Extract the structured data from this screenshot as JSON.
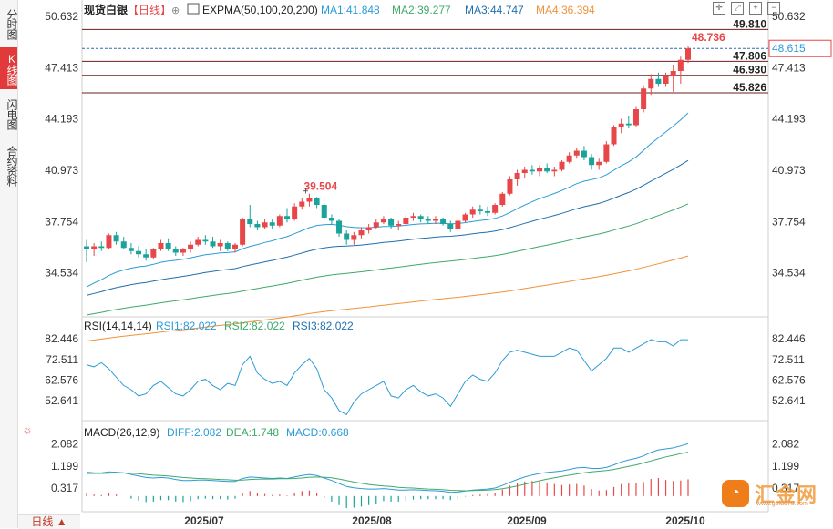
{
  "sidebar": {
    "tabs": [
      {
        "label": "分时图",
        "active": false
      },
      {
        "label": "K线图",
        "active": true
      },
      {
        "label": "闪电图",
        "active": false
      },
      {
        "label": "合约资料",
        "active": false
      }
    ]
  },
  "header": {
    "symbol": "现货白银",
    "period": "【日线】",
    "indicator": "EXPMA(50,100,20,200)",
    "ma1": "MA1:41.848",
    "ma2": "MA2:39.277",
    "ma3": "MA3:44.747",
    "ma4": "MA4:36.394"
  },
  "rsi_header": {
    "name": "RSI(14,14,14)",
    "rsi1": "RSI1:82.022",
    "rsi2": "RSI2:82.022",
    "rsi3": "RSI3:82.022"
  },
  "macd_header": {
    "name": "MACD(26,12,9)",
    "diff": "DIFF:2.082",
    "dea": "DEA:1.748",
    "macd": "MACD:0.668"
  },
  "period_selector": "日线",
  "current_price_tag": "48.615",
  "logo": {
    "text": "汇金网",
    "url": "www.gold678.com"
  },
  "colors": {
    "up": "#e8474a",
    "down": "#1aa39a",
    "ma1": "#2c9bd6",
    "ma2": "#3fa96b",
    "ma3": "#1f6fae",
    "ma4": "#f0923a",
    "rsi": "#2c9bd6",
    "diff": "#2c9bd6",
    "dea": "#3fa96b"
  },
  "chart_data": {
    "type": "candlestick",
    "x_ticks": [
      "2025/07",
      "2025/08",
      "2025/09",
      "2025/10"
    ],
    "price_axis": {
      "ticks": [
        50.632,
        47.413,
        44.193,
        40.973,
        37.754,
        34.534
      ],
      "range": [
        32.0,
        51.2
      ]
    },
    "horizontal_levels": [
      49.81,
      47.806,
      46.93,
      45.826
    ],
    "annotations": [
      {
        "label": "39.504",
        "type": "high"
      },
      {
        "label": "48.736",
        "type": "high"
      }
    ],
    "candles": [
      {
        "o": 36.2,
        "h": 36.6,
        "l": 35.2,
        "c": 36.0
      },
      {
        "o": 36.0,
        "h": 36.4,
        "l": 35.6,
        "c": 36.2
      },
      {
        "o": 36.2,
        "h": 36.5,
        "l": 35.9,
        "c": 36.1
      },
      {
        "o": 36.1,
        "h": 37.0,
        "l": 36.0,
        "c": 36.9
      },
      {
        "o": 36.9,
        "h": 37.1,
        "l": 36.3,
        "c": 36.5
      },
      {
        "o": 36.5,
        "h": 36.8,
        "l": 36.0,
        "c": 36.1
      },
      {
        "o": 36.1,
        "h": 36.4,
        "l": 35.7,
        "c": 35.9
      },
      {
        "o": 35.9,
        "h": 36.2,
        "l": 35.5,
        "c": 35.7
      },
      {
        "o": 35.7,
        "h": 36.0,
        "l": 35.3,
        "c": 35.5
      },
      {
        "o": 35.5,
        "h": 36.1,
        "l": 35.4,
        "c": 36.0
      },
      {
        "o": 36.0,
        "h": 36.6,
        "l": 35.9,
        "c": 36.4
      },
      {
        "o": 36.4,
        "h": 36.7,
        "l": 35.9,
        "c": 36.0
      },
      {
        "o": 36.0,
        "h": 36.2,
        "l": 35.6,
        "c": 35.8
      },
      {
        "o": 35.8,
        "h": 36.1,
        "l": 35.6,
        "c": 36.0
      },
      {
        "o": 36.0,
        "h": 36.5,
        "l": 35.8,
        "c": 36.3
      },
      {
        "o": 36.3,
        "h": 36.8,
        "l": 36.2,
        "c": 36.6
      },
      {
        "o": 36.6,
        "h": 36.9,
        "l": 36.3,
        "c": 36.5
      },
      {
        "o": 36.5,
        "h": 36.8,
        "l": 36.1,
        "c": 36.2
      },
      {
        "o": 36.2,
        "h": 36.6,
        "l": 35.9,
        "c": 36.4
      },
      {
        "o": 36.4,
        "h": 36.5,
        "l": 35.9,
        "c": 36.0
      },
      {
        "o": 36.0,
        "h": 36.4,
        "l": 35.8,
        "c": 36.3
      },
      {
        "o": 36.3,
        "h": 38.0,
        "l": 36.2,
        "c": 37.9
      },
      {
        "o": 37.9,
        "h": 38.8,
        "l": 37.4,
        "c": 37.6
      },
      {
        "o": 37.6,
        "h": 37.8,
        "l": 37.2,
        "c": 37.4
      },
      {
        "o": 37.4,
        "h": 37.9,
        "l": 37.3,
        "c": 37.7
      },
      {
        "o": 37.7,
        "h": 37.9,
        "l": 37.3,
        "c": 37.5
      },
      {
        "o": 37.5,
        "h": 38.2,
        "l": 37.4,
        "c": 38.1
      },
      {
        "o": 38.1,
        "h": 38.6,
        "l": 37.7,
        "c": 37.9
      },
      {
        "o": 37.9,
        "h": 38.9,
        "l": 37.8,
        "c": 38.7
      },
      {
        "o": 38.7,
        "h": 39.2,
        "l": 38.5,
        "c": 39.0
      },
      {
        "o": 39.0,
        "h": 39.504,
        "l": 38.7,
        "c": 39.2
      },
      {
        "o": 39.2,
        "h": 39.3,
        "l": 38.6,
        "c": 38.8
      },
      {
        "o": 38.8,
        "h": 38.9,
        "l": 37.9,
        "c": 38.0
      },
      {
        "o": 38.0,
        "h": 38.2,
        "l": 37.6,
        "c": 37.8
      },
      {
        "o": 37.8,
        "h": 37.9,
        "l": 36.8,
        "c": 37.0
      },
      {
        "o": 37.0,
        "h": 37.2,
        "l": 36.3,
        "c": 36.6
      },
      {
        "o": 36.6,
        "h": 37.1,
        "l": 36.3,
        "c": 36.9
      },
      {
        "o": 36.9,
        "h": 37.4,
        "l": 36.7,
        "c": 37.2
      },
      {
        "o": 37.2,
        "h": 37.6,
        "l": 37.0,
        "c": 37.4
      },
      {
        "o": 37.4,
        "h": 37.9,
        "l": 37.3,
        "c": 37.7
      },
      {
        "o": 37.7,
        "h": 38.1,
        "l": 37.6,
        "c": 37.9
      },
      {
        "o": 37.9,
        "h": 38.0,
        "l": 37.3,
        "c": 37.5
      },
      {
        "o": 37.5,
        "h": 37.8,
        "l": 37.2,
        "c": 37.6
      },
      {
        "o": 37.6,
        "h": 38.2,
        "l": 37.5,
        "c": 38.0
      },
      {
        "o": 38.0,
        "h": 38.3,
        "l": 37.8,
        "c": 38.1
      },
      {
        "o": 38.1,
        "h": 38.2,
        "l": 37.7,
        "c": 37.9
      },
      {
        "o": 37.9,
        "h": 38.1,
        "l": 37.6,
        "c": 37.8
      },
      {
        "o": 37.8,
        "h": 38.1,
        "l": 37.6,
        "c": 37.9
      },
      {
        "o": 37.9,
        "h": 38.0,
        "l": 37.5,
        "c": 37.6
      },
      {
        "o": 37.6,
        "h": 37.8,
        "l": 37.1,
        "c": 37.3
      },
      {
        "o": 37.3,
        "h": 37.9,
        "l": 37.2,
        "c": 37.8
      },
      {
        "o": 37.8,
        "h": 38.3,
        "l": 37.7,
        "c": 38.2
      },
      {
        "o": 38.2,
        "h": 38.7,
        "l": 38.0,
        "c": 38.5
      },
      {
        "o": 38.5,
        "h": 38.8,
        "l": 38.2,
        "c": 38.4
      },
      {
        "o": 38.4,
        "h": 38.7,
        "l": 38.1,
        "c": 38.3
      },
      {
        "o": 38.3,
        "h": 38.9,
        "l": 38.2,
        "c": 38.8
      },
      {
        "o": 38.8,
        "h": 39.6,
        "l": 38.7,
        "c": 39.5
      },
      {
        "o": 39.5,
        "h": 40.6,
        "l": 39.4,
        "c": 40.4
      },
      {
        "o": 40.4,
        "h": 41.0,
        "l": 40.0,
        "c": 40.8
      },
      {
        "o": 40.8,
        "h": 41.2,
        "l": 40.5,
        "c": 41.0
      },
      {
        "o": 41.0,
        "h": 41.3,
        "l": 40.7,
        "c": 40.9
      },
      {
        "o": 40.9,
        "h": 41.3,
        "l": 40.6,
        "c": 41.1
      },
      {
        "o": 41.1,
        "h": 41.4,
        "l": 40.8,
        "c": 40.9
      },
      {
        "o": 40.9,
        "h": 41.2,
        "l": 40.6,
        "c": 41.0
      },
      {
        "o": 41.0,
        "h": 41.6,
        "l": 40.9,
        "c": 41.5
      },
      {
        "o": 41.5,
        "h": 42.1,
        "l": 41.4,
        "c": 41.9
      },
      {
        "o": 41.9,
        "h": 42.4,
        "l": 41.7,
        "c": 42.2
      },
      {
        "o": 42.2,
        "h": 42.5,
        "l": 41.6,
        "c": 41.8
      },
      {
        "o": 41.8,
        "h": 42.0,
        "l": 41.0,
        "c": 41.3
      },
      {
        "o": 41.3,
        "h": 41.7,
        "l": 41.0,
        "c": 41.5
      },
      {
        "o": 41.5,
        "h": 42.8,
        "l": 41.4,
        "c": 42.6
      },
      {
        "o": 42.6,
        "h": 43.8,
        "l": 42.5,
        "c": 43.7
      },
      {
        "o": 43.7,
        "h": 44.2,
        "l": 43.3,
        "c": 43.9
      },
      {
        "o": 43.9,
        "h": 44.4,
        "l": 43.6,
        "c": 43.8
      },
      {
        "o": 43.8,
        "h": 45.0,
        "l": 43.7,
        "c": 44.8
      },
      {
        "o": 44.8,
        "h": 46.3,
        "l": 44.6,
        "c": 46.1
      },
      {
        "o": 46.1,
        "h": 47.0,
        "l": 45.7,
        "c": 46.7
      },
      {
        "o": 46.7,
        "h": 47.1,
        "l": 46.2,
        "c": 46.4
      },
      {
        "o": 46.4,
        "h": 47.1,
        "l": 46.2,
        "c": 46.9
      },
      {
        "o": 46.9,
        "h": 47.6,
        "l": 45.9,
        "c": 47.2
      },
      {
        "o": 47.2,
        "h": 48.1,
        "l": 46.4,
        "c": 47.9
      },
      {
        "o": 47.9,
        "h": 48.736,
        "l": 47.7,
        "c": 48.615
      }
    ],
    "rsi_axis": {
      "ticks": [
        82.446,
        72.511,
        62.576,
        52.641
      ],
      "range": [
        44,
        86
      ]
    },
    "rsi": [
      70,
      69,
      71,
      68,
      64,
      60,
      58,
      55,
      56,
      60,
      62,
      59,
      56,
      55,
      58,
      62,
      63,
      60,
      58,
      61,
      60,
      70,
      74,
      66,
      63,
      61,
      62,
      60,
      66,
      70,
      73,
      68,
      58,
      54,
      48,
      46,
      52,
      56,
      58,
      60,
      62,
      55,
      54,
      58,
      60,
      57,
      55,
      56,
      54,
      50,
      56,
      62,
      65,
      63,
      62,
      66,
      72,
      76,
      77,
      76,
      75,
      74,
      74,
      74,
      76,
      78,
      77,
      72,
      67,
      70,
      73,
      78,
      78,
      76,
      78,
      80,
      82,
      81,
      81,
      79,
      82,
      82
    ],
    "macd_axis": {
      "ticks": [
        2.082,
        1.199,
        0.317
      ],
      "range": [
        -0.55,
        2.35
      ]
    },
    "diff": [
      0.95,
      0.93,
      0.92,
      0.96,
      0.95,
      0.92,
      0.86,
      0.8,
      0.74,
      0.72,
      0.74,
      0.72,
      0.66,
      0.62,
      0.62,
      0.64,
      0.64,
      0.62,
      0.6,
      0.58,
      0.58,
      0.7,
      0.76,
      0.74,
      0.72,
      0.7,
      0.72,
      0.7,
      0.76,
      0.82,
      0.86,
      0.82,
      0.72,
      0.62,
      0.5,
      0.38,
      0.33,
      0.3,
      0.28,
      0.28,
      0.3,
      0.27,
      0.24,
      0.24,
      0.25,
      0.24,
      0.22,
      0.21,
      0.19,
      0.15,
      0.16,
      0.2,
      0.24,
      0.26,
      0.28,
      0.32,
      0.42,
      0.55,
      0.66,
      0.76,
      0.84,
      0.9,
      0.94,
      0.97,
      1.0,
      1.06,
      1.12,
      1.14,
      1.1,
      1.1,
      1.14,
      1.24,
      1.36,
      1.44,
      1.5,
      1.6,
      1.74,
      1.84,
      1.88,
      1.92,
      2.0,
      2.082
    ],
    "dea": [
      0.9,
      0.9,
      0.9,
      0.91,
      0.92,
      0.92,
      0.91,
      0.89,
      0.86,
      0.83,
      0.82,
      0.8,
      0.77,
      0.74,
      0.72,
      0.7,
      0.69,
      0.68,
      0.66,
      0.65,
      0.63,
      0.64,
      0.66,
      0.67,
      0.68,
      0.68,
      0.69,
      0.69,
      0.7,
      0.72,
      0.75,
      0.76,
      0.75,
      0.73,
      0.68,
      0.62,
      0.56,
      0.51,
      0.46,
      0.43,
      0.4,
      0.38,
      0.35,
      0.33,
      0.32,
      0.3,
      0.28,
      0.27,
      0.25,
      0.23,
      0.22,
      0.21,
      0.22,
      0.23,
      0.24,
      0.26,
      0.29,
      0.34,
      0.4,
      0.47,
      0.54,
      0.61,
      0.67,
      0.73,
      0.78,
      0.83,
      0.88,
      0.93,
      0.96,
      0.99,
      1.02,
      1.06,
      1.12,
      1.18,
      1.24,
      1.32,
      1.4,
      1.48,
      1.56,
      1.62,
      1.69,
      1.748
    ]
  }
}
